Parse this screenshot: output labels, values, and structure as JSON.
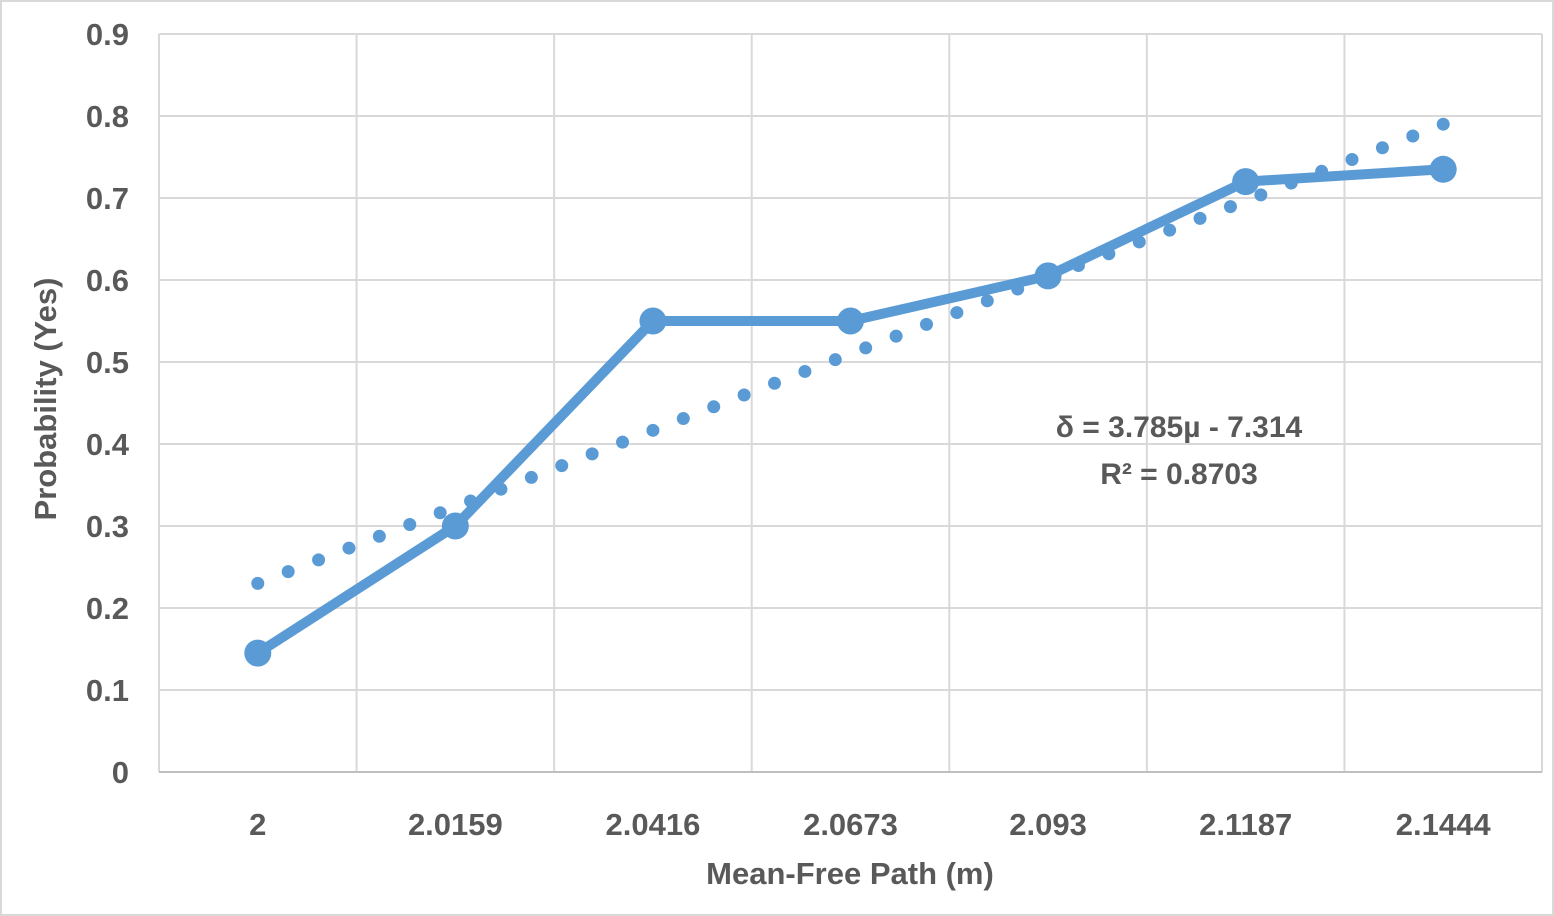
{
  "chart_data": {
    "type": "line",
    "title": "",
    "xlabel": "Mean-Free Path (m)",
    "ylabel": "Probability (Yes)",
    "categories": [
      "2",
      "2.0159",
      "2.0416",
      "2.0673",
      "2.093",
      "2.1187",
      "2.1444"
    ],
    "series": [
      {
        "name": "Probability (Yes)",
        "values": [
          0.145,
          0.3,
          0.55,
          0.55,
          0.605,
          0.72,
          0.735
        ],
        "style": "solid-line-with-circle-markers",
        "color": "#5B9BD5"
      }
    ],
    "trendline": {
      "type": "linear",
      "style": "round-dotted",
      "start_value": 0.23,
      "end_value": 0.79,
      "equation": "δ = 3.785µ - 7.314",
      "r_squared": "R² = 0.8703",
      "color": "#5B9BD5"
    },
    "ylim": [
      0,
      0.9
    ],
    "y_tick_labels": [
      "0",
      "0.1",
      "0.2",
      "0.3",
      "0.4",
      "0.5",
      "0.6",
      "0.7",
      "0.8",
      "0.9"
    ],
    "grid": true,
    "legend": "none",
    "colors": {
      "series": "#5B9BD5",
      "gridline": "#D9D9D9",
      "axis_line": "#BFBFBF",
      "text": "#595959",
      "background": "#FFFFFF",
      "border": "#D9D9D9"
    }
  }
}
